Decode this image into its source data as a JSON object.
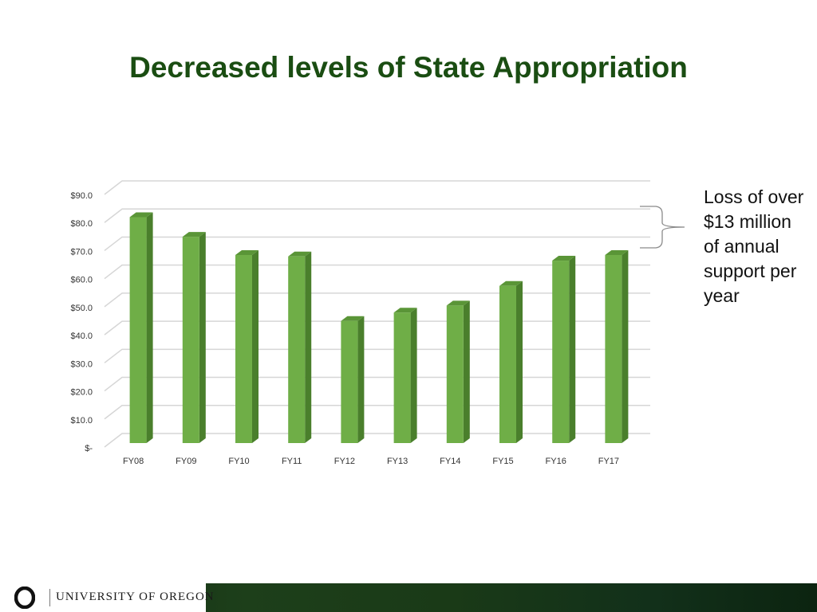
{
  "slide": {
    "title": "Decreased levels of State Appropriation",
    "annotation": "Loss of over $13 million of annual support per year"
  },
  "footer": {
    "university_name": "UNIVERSITY OF OREGON",
    "logo": "o-logo-icon"
  },
  "colors": {
    "title": "#1a4d12",
    "bar_front": "#6fae47",
    "bar_side": "#4a7f2c",
    "bar_top": "#5a9537",
    "grid": "#d6d6d6",
    "footer": "#1d3f1a"
  },
  "chart_data": {
    "type": "bar",
    "title": "",
    "xlabel": "",
    "ylabel": "",
    "categories": [
      "FY08",
      "FY09",
      "FY10",
      "FY11",
      "FY12",
      "FY13",
      "FY14",
      "FY15",
      "FY16",
      "FY17"
    ],
    "values": [
      80.5,
      73.5,
      67.0,
      66.5,
      43.5,
      46.5,
      49.0,
      56.0,
      65.0,
      67.0
    ],
    "ylim": [
      0,
      90
    ],
    "yticks": [
      0,
      10,
      20,
      30,
      40,
      50,
      60,
      70,
      80,
      90
    ],
    "ytick_labels": [
      "$-",
      "$10.0",
      "$20.0",
      "$30.0",
      "$40.0",
      "$50.0",
      "$60.0",
      "$70.0",
      "$80.0",
      "$90.0"
    ],
    "grid": true,
    "legend": "none",
    "style": "3d-column"
  }
}
